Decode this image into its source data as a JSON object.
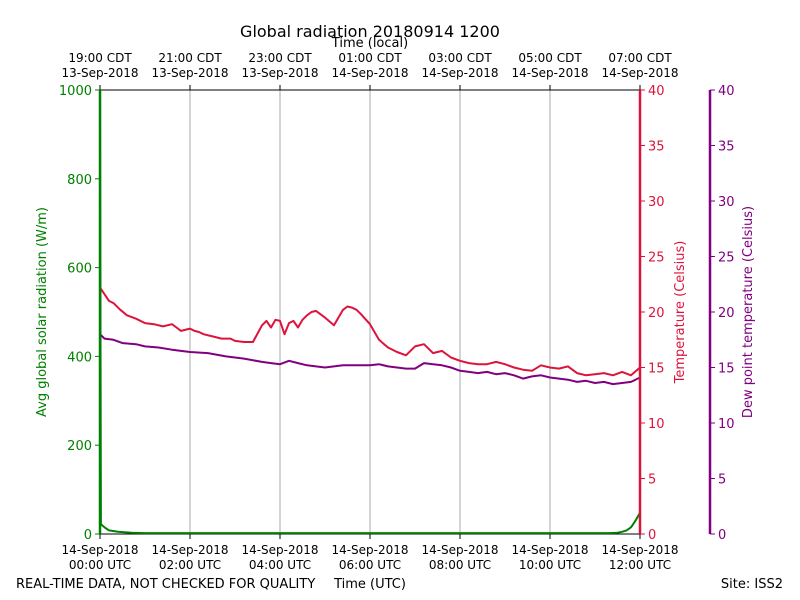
{
  "chart_data": {
    "type": "line",
    "title": "Global radiation 20180914 1200",
    "top_axis_title": "Time (local)",
    "xlabel": "Time (UTC)",
    "footer_left": "REAL-TIME DATA, NOT CHECKED FOR QUALITY",
    "footer_right": "Site: ISS2",
    "x_range_hours_utc": [
      0,
      12
    ],
    "grid": "vertical",
    "bottom_ticks": [
      {
        "hour": 0,
        "date": "14-Sep-2018",
        "time": "00:00 UTC"
      },
      {
        "hour": 2,
        "date": "14-Sep-2018",
        "time": "02:00 UTC"
      },
      {
        "hour": 4,
        "date": "14-Sep-2018",
        "time": "04:00 UTC"
      },
      {
        "hour": 6,
        "date": "14-Sep-2018",
        "time": "06:00 UTC"
      },
      {
        "hour": 8,
        "date": "14-Sep-2018",
        "time": "08:00 UTC"
      },
      {
        "hour": 10,
        "date": "14-Sep-2018",
        "time": "10:00 UTC"
      },
      {
        "hour": 12,
        "date": "14-Sep-2018",
        "time": "12:00 UTC"
      }
    ],
    "top_ticks": [
      {
        "hour": 0,
        "time": "19:00 CDT",
        "date": "13-Sep-2018"
      },
      {
        "hour": 2,
        "time": "21:00 CDT",
        "date": "13-Sep-2018"
      },
      {
        "hour": 4,
        "time": "23:00 CDT",
        "date": "13-Sep-2018"
      },
      {
        "hour": 6,
        "time": "01:00 CDT",
        "date": "14-Sep-2018"
      },
      {
        "hour": 8,
        "time": "03:00 CDT",
        "date": "14-Sep-2018"
      },
      {
        "hour": 10,
        "time": "05:00 CDT",
        "date": "14-Sep-2018"
      },
      {
        "hour": 12,
        "time": "07:00 CDT",
        "date": "14-Sep-2018"
      }
    ],
    "axes": {
      "radiation": {
        "label": "Avg global solar radiation (W/m)",
        "ylim": [
          0,
          1000
        ],
        "ticks": [
          "0",
          "200",
          "400",
          "600",
          "800",
          "1000"
        ],
        "color": "#008000"
      },
      "temperature": {
        "label": "Temperature (Celsius)",
        "ylim": [
          0,
          40
        ],
        "ticks": [
          "0",
          "5",
          "10",
          "15",
          "20",
          "25",
          "30",
          "35",
          "40"
        ],
        "color": "#dc143c"
      },
      "dewpoint": {
        "label": "Dew point temperature (Celsius)",
        "ylim": [
          0,
          40
        ],
        "ticks": [
          "0",
          "5",
          "10",
          "15",
          "20",
          "25",
          "30",
          "35",
          "40"
        ],
        "color": "#800080"
      }
    },
    "series": [
      {
        "key": "radiation",
        "color": "#008000",
        "x": [
          0,
          0.02,
          0.1,
          0.2,
          0.4,
          0.7,
          1.0,
          2.0,
          4.0,
          6.0,
          8.0,
          10.0,
          11.3,
          11.5,
          11.6,
          11.7,
          11.8,
          11.9,
          12.0
        ],
        "y": [
          1000,
          22,
          15,
          8,
          5,
          3,
          2,
          2,
          2,
          2,
          2,
          2,
          2,
          3,
          5,
          8,
          15,
          30,
          48
        ]
      },
      {
        "key": "temperature",
        "color": "#dc143c",
        "x": [
          0,
          0.1,
          0.2,
          0.3,
          0.45,
          0.6,
          0.8,
          1.0,
          1.2,
          1.4,
          1.6,
          1.7,
          1.8,
          2.0,
          2.1,
          2.2,
          2.3,
          2.5,
          2.7,
          2.9,
          3.0,
          3.2,
          3.4,
          3.6,
          3.7,
          3.8,
          3.9,
          4.0,
          4.1,
          4.2,
          4.3,
          4.4,
          4.5,
          4.6,
          4.7,
          4.8,
          5.0,
          5.2,
          5.4,
          5.5,
          5.6,
          5.7,
          5.8,
          6.0,
          6.2,
          6.4,
          6.6,
          6.8,
          7.0,
          7.2,
          7.4,
          7.6,
          7.8,
          8.0,
          8.2,
          8.4,
          8.6,
          8.8,
          9.0,
          9.2,
          9.4,
          9.6,
          9.8,
          10.0,
          10.2,
          10.4,
          10.6,
          10.8,
          11.0,
          11.2,
          11.4,
          11.6,
          11.8,
          12.0
        ],
        "y": [
          22.2,
          21.6,
          21.0,
          20.8,
          20.2,
          19.7,
          19.4,
          19.0,
          18.9,
          18.7,
          18.9,
          18.6,
          18.3,
          18.5,
          18.3,
          18.2,
          18.0,
          17.8,
          17.6,
          17.6,
          17.4,
          17.3,
          17.3,
          18.8,
          19.2,
          18.6,
          19.3,
          19.2,
          18.0,
          19.0,
          19.2,
          18.6,
          19.3,
          19.7,
          20.0,
          20.1,
          19.5,
          18.8,
          20.2,
          20.5,
          20.4,
          20.2,
          19.8,
          18.9,
          17.5,
          16.8,
          16.4,
          16.1,
          16.9,
          17.1,
          16.3,
          16.5,
          15.9,
          15.6,
          15.4,
          15.3,
          15.3,
          15.5,
          15.3,
          15.0,
          14.8,
          14.7,
          15.2,
          15.0,
          14.9,
          15.1,
          14.5,
          14.3,
          14.4,
          14.5,
          14.3,
          14.6,
          14.3,
          15.0
        ]
      },
      {
        "key": "dewpoint",
        "color": "#800080",
        "x": [
          0,
          0.1,
          0.3,
          0.5,
          0.8,
          1.0,
          1.3,
          1.6,
          2.0,
          2.4,
          2.8,
          3.2,
          3.6,
          3.8,
          4.0,
          4.2,
          4.4,
          4.6,
          4.8,
          5.0,
          5.2,
          5.4,
          5.6,
          6.0,
          6.2,
          6.4,
          6.6,
          6.8,
          7.0,
          7.2,
          7.4,
          7.6,
          7.8,
          8.0,
          8.2,
          8.4,
          8.6,
          8.8,
          9.0,
          9.2,
          9.4,
          9.6,
          9.8,
          10.0,
          10.2,
          10.4,
          10.6,
          10.8,
          11.0,
          11.2,
          11.4,
          11.6,
          11.8,
          12.0
        ],
        "y": [
          18.0,
          17.6,
          17.5,
          17.2,
          17.1,
          16.9,
          16.8,
          16.6,
          16.4,
          16.3,
          16.0,
          15.8,
          15.5,
          15.4,
          15.3,
          15.6,
          15.4,
          15.2,
          15.1,
          15.0,
          15.1,
          15.2,
          15.2,
          15.2,
          15.3,
          15.1,
          15.0,
          14.9,
          14.9,
          15.4,
          15.3,
          15.2,
          15.0,
          14.7,
          14.6,
          14.5,
          14.6,
          14.4,
          14.5,
          14.3,
          14.0,
          14.2,
          14.3,
          14.1,
          14.0,
          13.9,
          13.7,
          13.8,
          13.6,
          13.7,
          13.5,
          13.6,
          13.7,
          14.1
        ]
      }
    ]
  }
}
